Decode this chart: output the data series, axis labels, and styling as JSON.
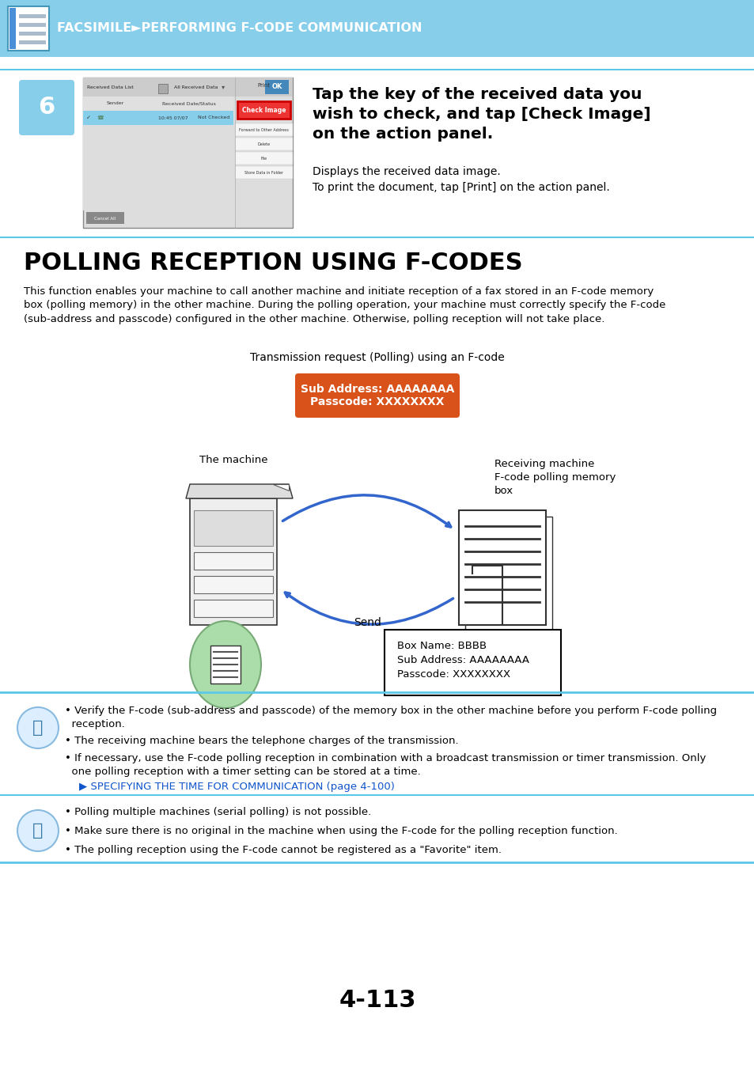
{
  "header_bg": "#87CEEB",
  "header_text": "FACSIMILE►PERFORMING F-CODE COMMUNICATION",
  "header_text_color": "#FFFFFF",
  "page_bg": "#FFFFFF",
  "step_number": "6",
  "step_bg": "#87CEEB",
  "step_text_color": "#FFFFFF",
  "instruction_title": "Tap the key of the received data you\nwish to check, and tap [Check Image]\non the action panel.",
  "instruction_body": "Displays the received data image.\nTo print the document, tap [Print] on the action panel.",
  "section_title": "POLLING RECEPTION USING F-CODES",
  "section_body": "This function enables your machine to call another machine and initiate reception of a fax stored in an F-code memory\nbox (polling memory) in the other machine. During the polling operation, your machine must correctly specify the F-code\n(sub-address and passcode) configured in the other machine. Otherwise, polling reception will not take place.",
  "diagram_label": "Transmission request (Polling) using an F-code",
  "orange_box_text": "Sub Address: AAAAAAAA\nPasscode: XXXXXXXX",
  "orange_box_color": "#D9521A",
  "machine_label": "The machine",
  "receiving_label": "Receiving machine\nF-code polling memory\nbox",
  "send_label": "Send",
  "info_box_text": "Box Name: BBBB\nSub Address: AAAAAAAA\nPasscode: XXXXXXXX",
  "info_box_bg": "#FFFFFF",
  "info_box_border": "#000000",
  "divider_color": "#5BC8E8",
  "note1_items": [
    "Verify the F-code (sub-address and passcode) of the memory box in the other machine before you perform F-code polling\nreception.",
    "The receiving machine bears the telephone charges of the transmission.",
    "If necessary, use the F-code polling reception in combination with a broadcast transmission or timer transmission. Only\none polling reception with a timer setting can be stored at a time."
  ],
  "note1_link": "SPECIFYING THE TIME FOR COMMUNICATION (page 4-100)",
  "note2_items": [
    "Polling multiple machines (serial polling) is not possible.",
    "Make sure there is no original in the machine when using the F-code for the polling reception function.",
    "The polling reception using the F-code cannot be registered as a \"Favorite\" item."
  ],
  "page_number": "4-113",
  "link_color": "#1155CC"
}
